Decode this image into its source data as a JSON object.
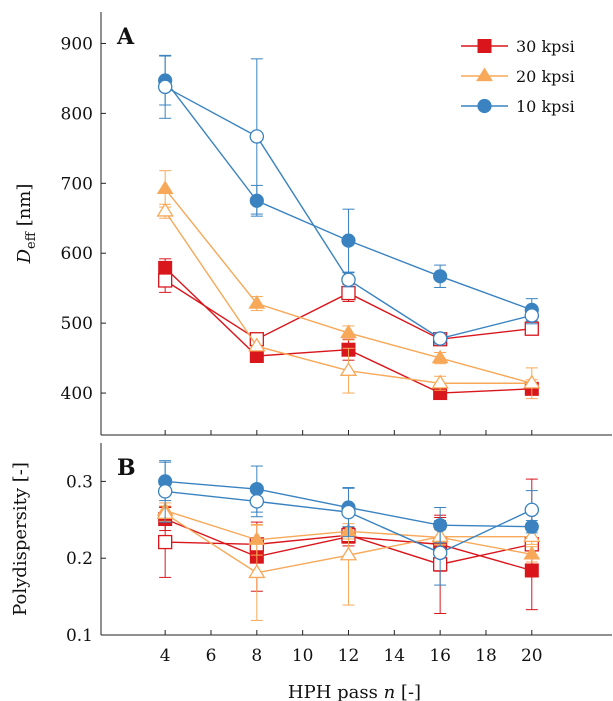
{
  "chart_data": [
    {
      "panel": "A",
      "type": "line",
      "ylabel_main": "D",
      "ylabel_sub": "eff",
      "ylabel_unit": "[nm]",
      "ylim": [
        340,
        945
      ],
      "yticks": [
        400,
        500,
        600,
        700,
        800,
        900
      ],
      "x": [
        4,
        8,
        12,
        16,
        20
      ],
      "series": [
        {
          "name": "30 kpsi",
          "filled": true,
          "marker": "square",
          "color": "#d9161c",
          "values": [
            579,
            453,
            462,
            400,
            406
          ],
          "errors": [
            13,
            9,
            15,
            5,
            8
          ]
        },
        {
          "filled": false,
          "marker": "square",
          "color": "#d9161c",
          "values": [
            561,
            477,
            543,
            477,
            492
          ],
          "errors": [
            17,
            0,
            12,
            4,
            0
          ]
        },
        {
          "name": "20 kpsi",
          "filled": true,
          "marker": "triangle",
          "color": "#f7a858",
          "values": [
            692,
            528,
            486,
            450,
            414
          ],
          "errors": [
            26,
            10,
            10,
            8,
            5
          ]
        },
        {
          "filled": false,
          "marker": "triangle",
          "color": "#f7a858",
          "values": [
            660,
            467,
            432,
            414,
            414
          ],
          "errors": [
            10,
            0,
            32,
            10,
            22
          ]
        },
        {
          "name": "10 kpsi",
          "filled": true,
          "marker": "circle",
          "color": "#3a83c0",
          "values": [
            847,
            675,
            618,
            567,
            519
          ],
          "errors": [
            35,
            22,
            45,
            16,
            16
          ]
        },
        {
          "filled": false,
          "marker": "circle",
          "color": "#3a83c0",
          "values": [
            838,
            767,
            562,
            478,
            511
          ],
          "errors": [
            45,
            111,
            10,
            8,
            12
          ]
        }
      ],
      "legend": [
        "30 kpsi",
        "20 kpsi",
        "10 kpsi"
      ],
      "legend_position": "top-right"
    },
    {
      "panel": "B",
      "type": "line",
      "ylabel": "Polydispersity [-]",
      "ylim": [
        0.1,
        0.35
      ],
      "yticks": [
        0.1,
        0.2,
        0.3
      ],
      "x": [
        4,
        8,
        12,
        16,
        20
      ],
      "series": [
        {
          "filled": true,
          "marker": "square",
          "color": "#d9161c",
          "values": [
            0.251,
            0.202,
            0.228,
            0.218,
            0.184
          ],
          "errors": [
            0.015,
            0.045,
            0.012,
            0.035,
            0.0
          ]
        },
        {
          "filled": false,
          "marker": "square",
          "color": "#d9161c",
          "values": [
            0.221,
            0.218,
            0.23,
            0.192,
            0.218
          ],
          "errors": [
            0.046,
            0.0,
            0.0,
            0.064,
            0.085
          ]
        },
        {
          "filled": true,
          "marker": "triangle",
          "color": "#f7a858",
          "values": [
            0.262,
            0.224,
            0.235,
            0.227,
            0.205
          ],
          "errors": [
            0.01,
            0.02,
            0.01,
            0.01,
            0.01
          ]
        },
        {
          "filled": false,
          "marker": "triangle",
          "color": "#f7a858",
          "values": [
            0.258,
            0.181,
            0.204,
            0.228,
            0.228
          ],
          "errors": [
            0.01,
            0.062,
            0.065,
            0.01,
            0.01
          ]
        },
        {
          "filled": true,
          "marker": "circle",
          "color": "#3a83c0",
          "values": [
            0.3,
            0.29,
            0.266,
            0.243,
            0.241
          ],
          "errors": [
            0.025,
            0.03,
            0.025,
            0.023,
            0.008
          ]
        },
        {
          "filled": false,
          "marker": "circle",
          "color": "#3a83c0",
          "values": [
            0.287,
            0.274,
            0.26,
            0.207,
            0.263
          ],
          "errors": [
            0.04,
            0.02,
            0.032,
            0.042,
            0.025
          ]
        }
      ]
    }
  ],
  "xaxis": {
    "label_prefix": "HPH pass ",
    "label_var": "n",
    "label_suffix": " [-]",
    "xlim": [
      1.2,
      23.5
    ],
    "ticks": [
      4,
      6,
      8,
      10,
      12,
      14,
      16,
      18,
      20
    ]
  }
}
